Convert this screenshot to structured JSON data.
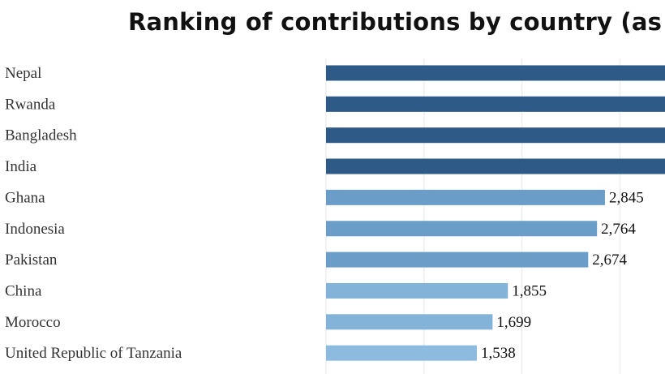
{
  "chart_data": {
    "type": "bar",
    "orientation": "horizontal",
    "title": "Ranking of contributions by country (as",
    "categories": [
      "Nepal",
      "Rwanda",
      "Bangladesh",
      "India",
      "Ghana",
      "Indonesia",
      "Pakistan",
      "China",
      "Morocco",
      "United Republic of Tanzania"
    ],
    "values": [
      null,
      null,
      null,
      null,
      2845,
      2764,
      2674,
      1855,
      1699,
      1538
    ],
    "value_labels": [
      "",
      "",
      "",
      "",
      "2,845",
      "2,764",
      "2,674",
      "1,855",
      "1,699",
      "1,538"
    ],
    "colors": [
      "#2e5a87",
      "#2e5a87",
      "#2e5a87",
      "#2e5a87",
      "#6a9ec9",
      "#6a9ec9",
      "#6a9ec9",
      "#84b3da",
      "#84b3da",
      "#8dbbe0"
    ],
    "xlim": [
      0,
      5000
    ],
    "grid": true,
    "legend": "none"
  }
}
